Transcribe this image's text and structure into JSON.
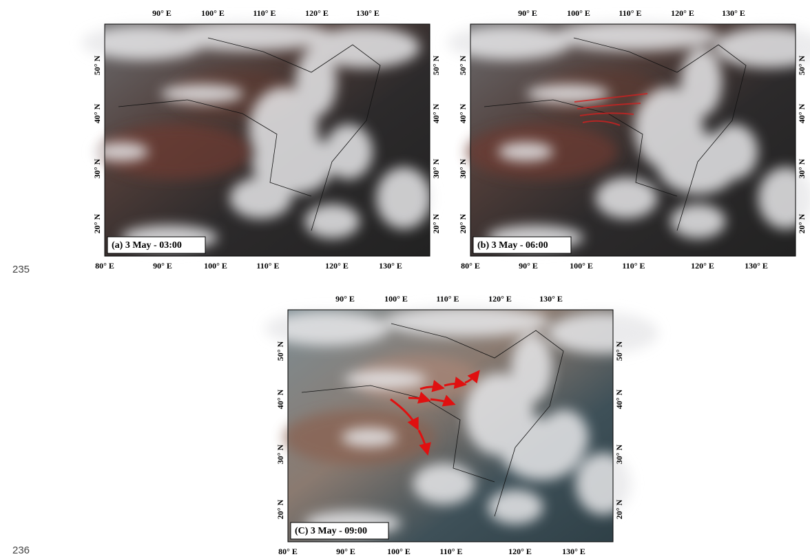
{
  "line_numbers": [
    "235",
    "236"
  ],
  "panels": [
    {
      "label": "(a) 3 May - 03:00",
      "top_ticks": [
        "90° E",
        "100° E",
        "110° E",
        "120° E",
        "130° E"
      ],
      "bottom_ticks": [
        "80° E",
        "90° E",
        "100° E",
        "110° E",
        "120° E",
        "130° E"
      ],
      "left_ticks": [
        "50° N",
        "40° N",
        "30° N",
        "20° N"
      ],
      "right_ticks": [
        "50° N",
        "40° N",
        "30° N",
        "20° N"
      ]
    },
    {
      "label": "(b) 3 May - 06:00",
      "top_ticks": [
        "90° E",
        "100° E",
        "110° E",
        "120° E",
        "130° E"
      ],
      "bottom_ticks": [
        "80° E",
        "90° E",
        "100° E",
        "110° E",
        "120° E",
        "130° E"
      ],
      "left_ticks": [
        "50° N",
        "40° N",
        "30° N",
        "20° N"
      ],
      "right_ticks": [
        "50° N",
        "40° N",
        "30° N",
        "20° N"
      ]
    },
    {
      "label": "(C) 3 May - 09:00",
      "top_ticks": [
        "90° E",
        "100° E",
        "110° E",
        "120° E",
        "130° E"
      ],
      "bottom_ticks": [
        "80° E",
        "90° E",
        "100° E",
        "110° E",
        "120° E",
        "130° E"
      ],
      "left_ticks": [
        "50° N",
        "40° N",
        "30° N",
        "20° N"
      ],
      "right_ticks": [
        "50° N",
        "40° N",
        "30° N",
        "20° N"
      ]
    }
  ]
}
